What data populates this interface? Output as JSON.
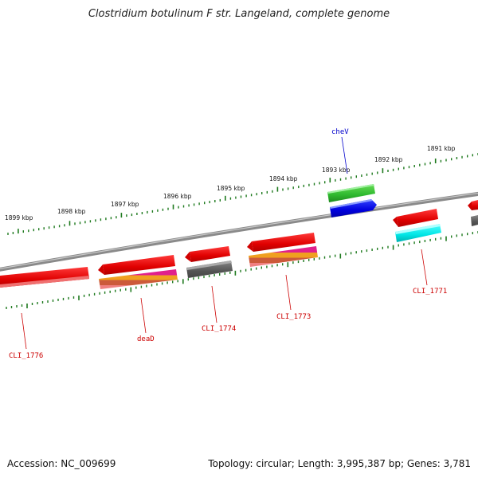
{
  "title": "Clostridium botulinum F str. Langeland, complete genome",
  "footer": {
    "accession": "Accession: NC_009699",
    "summary": "Topology: circular; Length: 3,995,387 bp; Genes: 3,781"
  },
  "colors": {
    "backbone": "#8a8a8a",
    "ticks": "#1e7a1e",
    "label_red": "#cc0000",
    "label_blue": "#0000cc"
  },
  "ruler": {
    "unit": "kbp",
    "labels": [
      {
        "kbp": 1899,
        "text": "1899 kbp"
      },
      {
        "kbp": 1898,
        "text": "1898 kbp"
      },
      {
        "kbp": 1897,
        "text": "1897 kbp"
      },
      {
        "kbp": 1896,
        "text": "1896 kbp"
      },
      {
        "kbp": 1895,
        "text": "1895 kbp"
      },
      {
        "kbp": 1894,
        "text": "1894 kbp"
      },
      {
        "kbp": 1893,
        "text": "1893 kbp"
      },
      {
        "kbp": 1892,
        "text": "1892 kbp"
      },
      {
        "kbp": 1891,
        "text": "1891 kbp"
      }
    ]
  },
  "gene_labels": [
    {
      "text": "cheV",
      "color": "blue"
    },
    {
      "text": "CLI_1776",
      "color": "red"
    },
    {
      "text": "deaD",
      "color": "red"
    },
    {
      "text": "CLI_1774",
      "color": "red"
    },
    {
      "text": "CLI_1773",
      "color": "red"
    },
    {
      "text": "CLI_1771",
      "color": "red"
    }
  ]
}
